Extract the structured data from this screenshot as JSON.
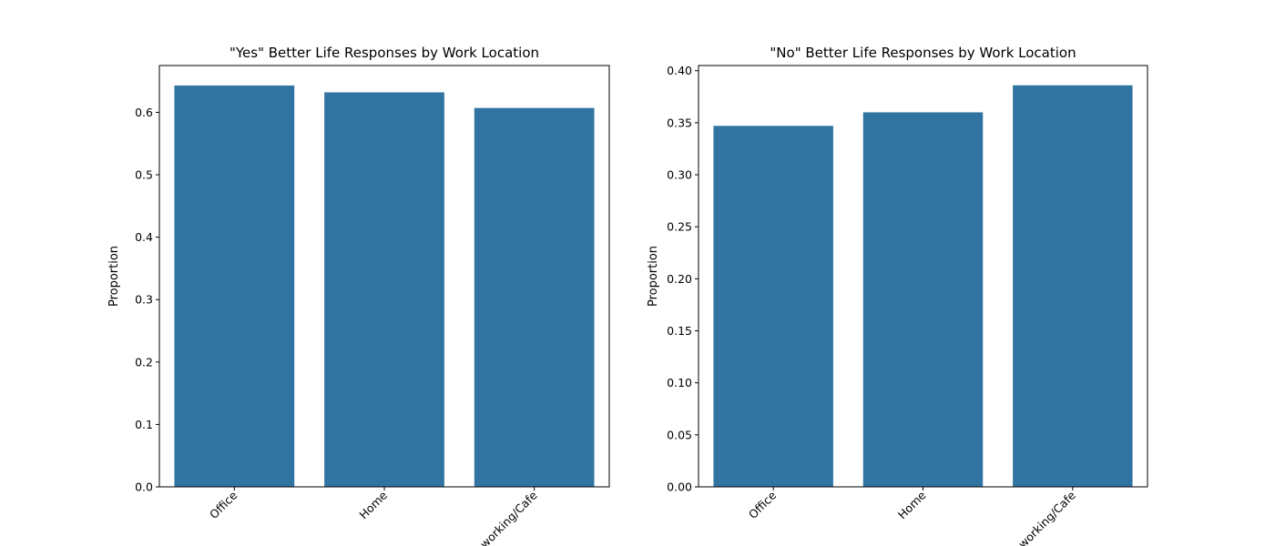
{
  "chart_data": [
    {
      "type": "bar",
      "title": "\"Yes\" Better Life Responses by Work Location",
      "xlabel": "",
      "ylabel": "Proportion",
      "categories": [
        "Office",
        "Home",
        "Coworking/Cafe"
      ],
      "values": [
        0.643,
        0.632,
        0.607
      ],
      "ylim": [
        0,
        0.675
      ],
      "yticks": [
        0.0,
        0.1,
        0.2,
        0.3,
        0.4,
        0.5,
        0.6
      ],
      "ytick_labels": [
        "0.0",
        "0.1",
        "0.2",
        "0.3",
        "0.4",
        "0.5",
        "0.6"
      ],
      "bar_color": "#3274a1",
      "grid": false
    },
    {
      "type": "bar",
      "title": "\"No\" Better Life Responses by Work Location",
      "xlabel": "",
      "ylabel": "Proportion",
      "categories": [
        "Office",
        "Home",
        "Coworking/Cafe"
      ],
      "values": [
        0.347,
        0.36,
        0.386
      ],
      "ylim": [
        0,
        0.405
      ],
      "yticks": [
        0.0,
        0.05,
        0.1,
        0.15,
        0.2,
        0.25,
        0.3,
        0.35,
        0.4
      ],
      "ytick_labels": [
        "0.00",
        "0.05",
        "0.10",
        "0.15",
        "0.20",
        "0.25",
        "0.30",
        "0.35",
        "0.40"
      ],
      "bar_color": "#3274a1",
      "grid": false
    }
  ]
}
